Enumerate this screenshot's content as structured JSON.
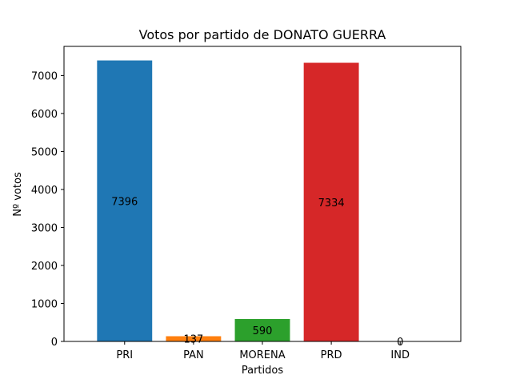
{
  "chart_data": {
    "type": "bar",
    "title": "Votos por partido de DONATO GUERRA",
    "xlabel": "Partidos",
    "ylabel": "Nº votos",
    "categories": [
      "PRI",
      "PAN",
      "MORENA",
      "PRD",
      "IND"
    ],
    "values": [
      7396,
      137,
      590,
      7334,
      0
    ],
    "data_labels": [
      "7396",
      "137",
      "590",
      "7334",
      "0"
    ],
    "colors": [
      "#1f77b4",
      "#ff7f0e",
      "#2ca02c",
      "#d62728",
      "#9467bd"
    ],
    "ylim": [
      0,
      7765.8
    ],
    "yticks": [
      0,
      1000,
      2000,
      3000,
      4000,
      5000,
      6000,
      7000
    ],
    "grid": false,
    "legend": "none"
  }
}
